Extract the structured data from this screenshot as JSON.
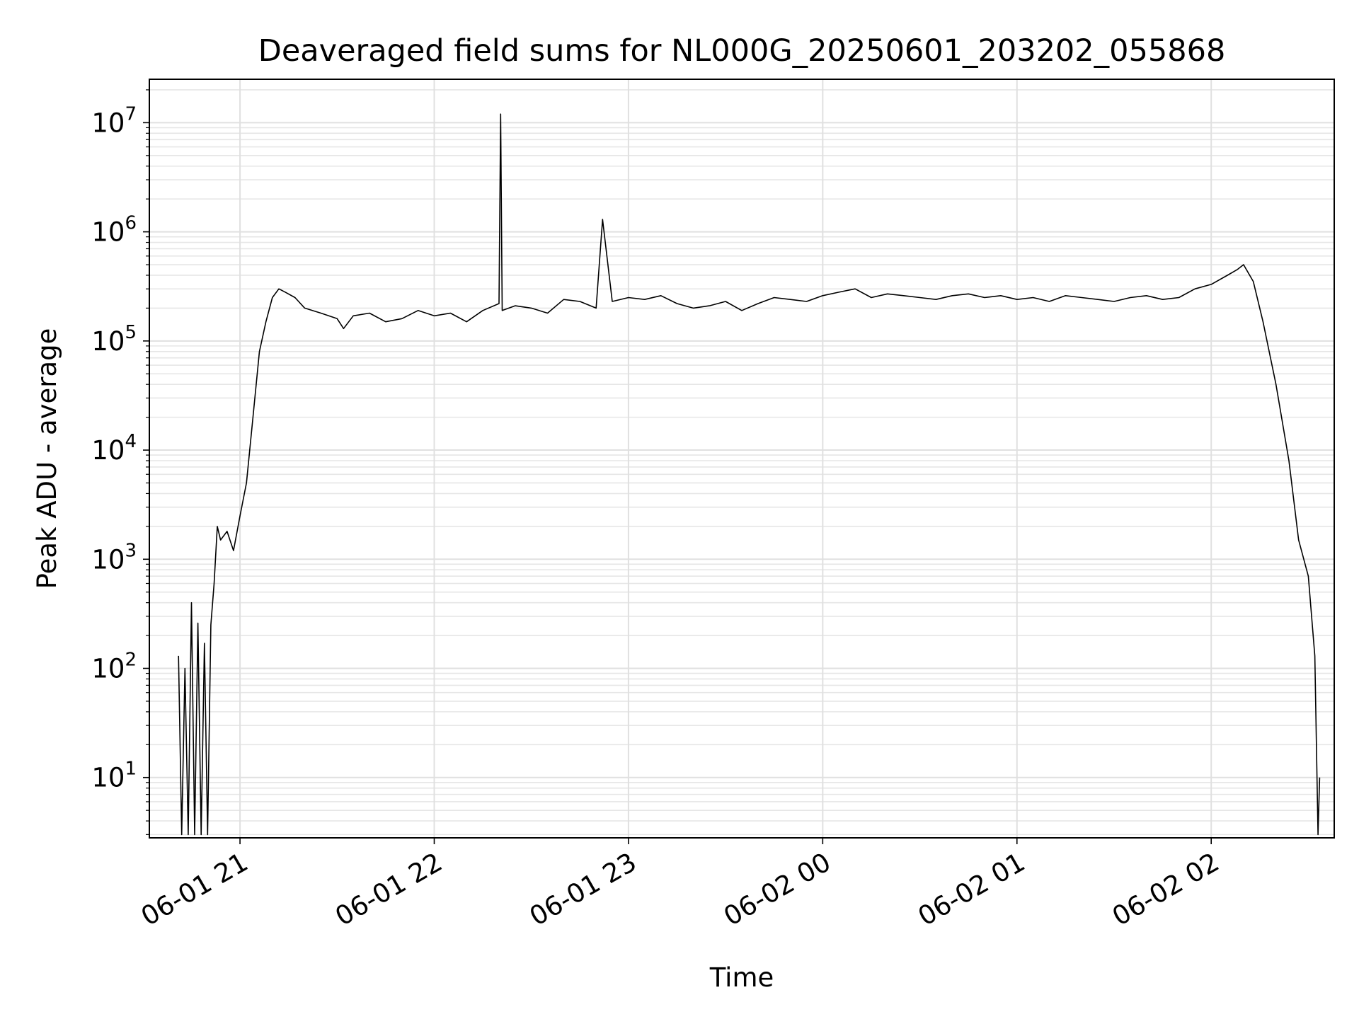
{
  "chart_data": {
    "type": "line",
    "title": "Deaveraged field sums for NL000G_20250601_203202_055868",
    "xlabel": "Time",
    "ylabel": "Peak ADU - average",
    "yscale": "log",
    "ylim": [
      2.8,
      25000000
    ],
    "xlim": [
      "2025-06-01 20:32:00",
      "2025-06-02 02:38:00"
    ],
    "grid": true,
    "line_color": "#000000",
    "x_ticks": [
      {
        "value": "2025-06-01 21:00",
        "label": "06-01 21"
      },
      {
        "value": "2025-06-01 22:00",
        "label": "06-01 22"
      },
      {
        "value": "2025-06-01 23:00",
        "label": "06-01 23"
      },
      {
        "value": "2025-06-02 00:00",
        "label": "06-02 00"
      },
      {
        "value": "2025-06-02 01:00",
        "label": "06-02 01"
      },
      {
        "value": "2025-06-02 02:00",
        "label": "06-02 02"
      }
    ],
    "y_ticks": [
      {
        "value": 10,
        "base": "10",
        "exp": "1"
      },
      {
        "value": 100,
        "base": "10",
        "exp": "2"
      },
      {
        "value": 1000,
        "base": "10",
        "exp": "3"
      },
      {
        "value": 10000,
        "base": "10",
        "exp": "4"
      },
      {
        "value": 100000,
        "base": "10",
        "exp": "5"
      },
      {
        "value": 1000000,
        "base": "10",
        "exp": "6"
      },
      {
        "value": 10000000,
        "base": "10",
        "exp": "7"
      }
    ],
    "series": [
      {
        "x": [
          "2025-06-01 20:41:00",
          "2025-06-01 20:42:00",
          "2025-06-01 20:43:00",
          "2025-06-01 20:44:00",
          "2025-06-01 20:45:00",
          "2025-06-01 20:46:00",
          "2025-06-01 20:47:00",
          "2025-06-01 20:48:00",
          "2025-06-01 20:49:00",
          "2025-06-01 20:50:00",
          "2025-06-01 20:51:00",
          "2025-06-01 20:52:00",
          "2025-06-01 20:53:00",
          "2025-06-01 20:54:00",
          "2025-06-01 20:56:00",
          "2025-06-01 20:58:00",
          "2025-06-01 21:00:00",
          "2025-06-01 21:02:00",
          "2025-06-01 21:04:00",
          "2025-06-01 21:06:00",
          "2025-06-01 21:08:00",
          "2025-06-01 21:10:00",
          "2025-06-01 21:12:00",
          "2025-06-01 21:14:00",
          "2025-06-01 21:17:00",
          "2025-06-01 21:20:00",
          "2025-06-01 21:25:00",
          "2025-06-01 21:30:00",
          "2025-06-01 21:32:00",
          "2025-06-01 21:35:00",
          "2025-06-01 21:40:00",
          "2025-06-01 21:45:00",
          "2025-06-01 21:50:00",
          "2025-06-01 21:55:00",
          "2025-06-01 22:00:00",
          "2025-06-01 22:05:00",
          "2025-06-01 22:10:00",
          "2025-06-01 22:15:00",
          "2025-06-01 22:20:00",
          "2025-06-01 22:20:30",
          "2025-06-01 22:21:00",
          "2025-06-01 22:25:00",
          "2025-06-01 22:30:00",
          "2025-06-01 22:35:00",
          "2025-06-01 22:40:00",
          "2025-06-01 22:45:00",
          "2025-06-01 22:50:00",
          "2025-06-01 22:52:00",
          "2025-06-01 22:55:00",
          "2025-06-01 23:00:00",
          "2025-06-01 23:05:00",
          "2025-06-01 23:10:00",
          "2025-06-01 23:15:00",
          "2025-06-01 23:20:00",
          "2025-06-01 23:25:00",
          "2025-06-01 23:30:00",
          "2025-06-01 23:35:00",
          "2025-06-01 23:40:00",
          "2025-06-01 23:45:00",
          "2025-06-01 23:50:00",
          "2025-06-01 23:55:00",
          "2025-06-02 00:00:00",
          "2025-06-02 00:05:00",
          "2025-06-02 00:10:00",
          "2025-06-02 00:15:00",
          "2025-06-02 00:20:00",
          "2025-06-02 00:25:00",
          "2025-06-02 00:30:00",
          "2025-06-02 00:35:00",
          "2025-06-02 00:40:00",
          "2025-06-02 00:45:00",
          "2025-06-02 00:50:00",
          "2025-06-02 00:55:00",
          "2025-06-02 01:00:00",
          "2025-06-02 01:05:00",
          "2025-06-02 01:10:00",
          "2025-06-02 01:15:00",
          "2025-06-02 01:20:00",
          "2025-06-02 01:25:00",
          "2025-06-02 01:30:00",
          "2025-06-02 01:35:00",
          "2025-06-02 01:40:00",
          "2025-06-02 01:45:00",
          "2025-06-02 01:50:00",
          "2025-06-02 01:55:00",
          "2025-06-02 02:00:00",
          "2025-06-02 02:05:00",
          "2025-06-02 02:08:00",
          "2025-06-02 02:10:00",
          "2025-06-02 02:13:00",
          "2025-06-02 02:16:00",
          "2025-06-02 02:20:00",
          "2025-06-02 02:24:00",
          "2025-06-02 02:27:00",
          "2025-06-02 02:30:00",
          "2025-06-02 02:32:00",
          "2025-06-02 02:33:00",
          "2025-06-02 02:33:30"
        ],
        "y": [
          130,
          3,
          100,
          3,
          400,
          3,
          260,
          3,
          170,
          3,
          250,
          600,
          2000,
          1500,
          1800,
          1200,
          2500,
          5000,
          20000,
          80000,
          150000,
          250000,
          300000,
          280000,
          250000,
          200000,
          180000,
          160000,
          130000,
          170000,
          180000,
          150000,
          160000,
          190000,
          170000,
          180000,
          150000,
          190000,
          220000,
          12000000,
          190000,
          210000,
          200000,
          180000,
          240000,
          230000,
          200000,
          1300000,
          230000,
          250000,
          240000,
          260000,
          220000,
          200000,
          210000,
          230000,
          190000,
          220000,
          250000,
          240000,
          230000,
          260000,
          280000,
          300000,
          250000,
          270000,
          260000,
          250000,
          240000,
          260000,
          270000,
          250000,
          260000,
          240000,
          250000,
          230000,
          260000,
          250000,
          240000,
          230000,
          250000,
          260000,
          240000,
          250000,
          300000,
          330000,
          400000,
          450000,
          500000,
          350000,
          150000,
          40000,
          8000,
          1500,
          700,
          130,
          3,
          10
        ]
      }
    ]
  }
}
